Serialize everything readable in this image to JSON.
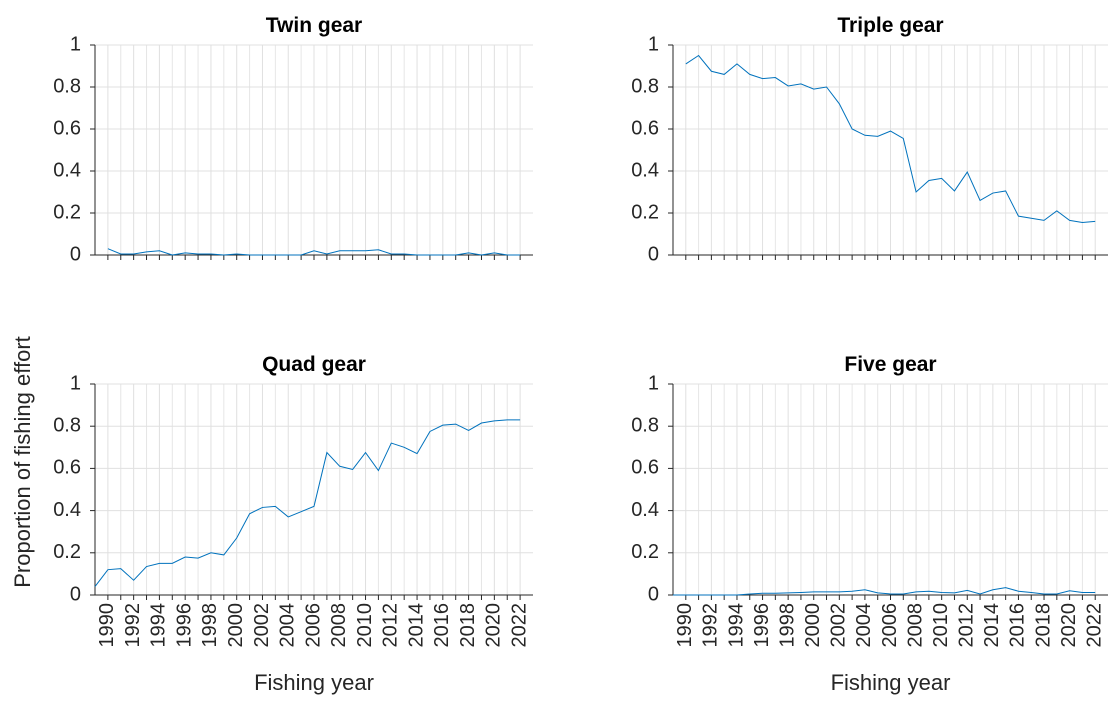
{
  "chart_data": [
    {
      "type": "line",
      "title": "Twin gear",
      "x": [
        1990,
        1991,
        1992,
        1993,
        1994,
        1995,
        1996,
        1997,
        1998,
        1999,
        2000,
        2001,
        2002,
        2003,
        2004,
        2005,
        2006,
        2007,
        2008,
        2009,
        2010,
        2011,
        2012,
        2013,
        2014,
        2015,
        2016,
        2017,
        2018,
        2019,
        2020,
        2021,
        2022
      ],
      "values": [
        0.03,
        0.005,
        0.005,
        0.015,
        0.02,
        0,
        0.01,
        0.005,
        0.005,
        0,
        0.005,
        0,
        0,
        0,
        0,
        0,
        0.02,
        0.005,
        0.02,
        0.02,
        0.02,
        0.025,
        0.005,
        0.005,
        0,
        0,
        0,
        0,
        0.01,
        0,
        0.01,
        0,
        0
      ],
      "color": "#0072bd",
      "xlim": [
        1989,
        2023
      ],
      "ylim": [
        0,
        1
      ],
      "yticks": [
        0,
        0.2,
        0.4,
        0.6,
        0.8,
        1
      ],
      "xticks": [
        1990,
        1992,
        1994,
        1996,
        1998,
        2000,
        2002,
        2004,
        2006,
        2008,
        2010,
        2012,
        2014,
        2016,
        2018,
        2020,
        2022
      ],
      "xminorticks": [
        1991,
        1993,
        1995,
        1997,
        1999,
        2001,
        2003,
        2005,
        2007,
        2009,
        2011,
        2013,
        2015,
        2017,
        2019,
        2021
      ],
      "xticklabels": false,
      "grid": true
    },
    {
      "type": "line",
      "title": "Triple gear",
      "x": [
        1990,
        1991,
        1992,
        1993,
        1994,
        1995,
        1996,
        1997,
        1998,
        1999,
        2000,
        2001,
        2002,
        2003,
        2004,
        2005,
        2006,
        2007,
        2008,
        2009,
        2010,
        2011,
        2012,
        2013,
        2014,
        2015,
        2016,
        2017,
        2018,
        2019,
        2020,
        2021,
        2022
      ],
      "values": [
        0.91,
        0.95,
        0.875,
        0.86,
        0.91,
        0.86,
        0.84,
        0.845,
        0.805,
        0.815,
        0.79,
        0.8,
        0.72,
        0.6,
        0.57,
        0.565,
        0.59,
        0.555,
        0.3,
        0.355,
        0.365,
        0.305,
        0.395,
        0.26,
        0.295,
        0.305,
        0.185,
        0.175,
        0.165,
        0.21,
        0.165,
        0.155,
        0.16
      ],
      "color": "#0072bd",
      "xlim": [
        1989,
        2023
      ],
      "ylim": [
        0,
        1
      ],
      "yticks": [
        0,
        0.2,
        0.4,
        0.6,
        0.8,
        1
      ],
      "xticks": [
        1990,
        1992,
        1994,
        1996,
        1998,
        2000,
        2002,
        2004,
        2006,
        2008,
        2010,
        2012,
        2014,
        2016,
        2018,
        2020,
        2022
      ],
      "xminorticks": [
        1991,
        1993,
        1995,
        1997,
        1999,
        2001,
        2003,
        2005,
        2007,
        2009,
        2011,
        2013,
        2015,
        2017,
        2019,
        2021
      ],
      "xticklabels": false,
      "grid": true
    },
    {
      "type": "line",
      "title": "Quad gear",
      "xlabel": "Fishing year",
      "ylabel": "Proportion of fishing effort",
      "x": [
        1989,
        1990,
        1991,
        1992,
        1993,
        1994,
        1995,
        1996,
        1997,
        1998,
        1999,
        2000,
        2001,
        2002,
        2003,
        2004,
        2005,
        2006,
        2007,
        2008,
        2009,
        2010,
        2011,
        2012,
        2013,
        2014,
        2015,
        2016,
        2017,
        2018,
        2019,
        2020,
        2021,
        2022
      ],
      "values": [
        0.04,
        0.12,
        0.125,
        0.07,
        0.135,
        0.15,
        0.15,
        0.18,
        0.175,
        0.2,
        0.19,
        0.27,
        0.385,
        0.415,
        0.42,
        0.37,
        0.395,
        0.42,
        0.675,
        0.61,
        0.595,
        0.675,
        0.59,
        0.72,
        0.7,
        0.67,
        0.775,
        0.805,
        0.81,
        0.78,
        0.815,
        0.825,
        0.83,
        0.83
      ],
      "color": "#0072bd",
      "xlim": [
        1989,
        2023
      ],
      "ylim": [
        0,
        1
      ],
      "yticks": [
        0,
        0.2,
        0.4,
        0.6,
        0.8,
        1
      ],
      "xticks": [
        1990,
        1992,
        1994,
        1996,
        1998,
        2000,
        2002,
        2004,
        2006,
        2008,
        2010,
        2012,
        2014,
        2016,
        2018,
        2020,
        2022
      ],
      "xminorticks": [
        1991,
        1993,
        1995,
        1997,
        1999,
        2001,
        2003,
        2005,
        2007,
        2009,
        2011,
        2013,
        2015,
        2017,
        2019,
        2021
      ],
      "xticklabels": true,
      "grid": true
    },
    {
      "type": "line",
      "title": "Five gear",
      "xlabel": "Fishing year",
      "x": [
        1989,
        1990,
        1991,
        1992,
        1993,
        1994,
        1995,
        1996,
        1997,
        1998,
        1999,
        2000,
        2001,
        2002,
        2003,
        2004,
        2005,
        2006,
        2007,
        2008,
        2009,
        2010,
        2011,
        2012,
        2013,
        2014,
        2015,
        2016,
        2017,
        2018,
        2019,
        2020,
        2021,
        2022
      ],
      "values": [
        0,
        0,
        0,
        0,
        0,
        0,
        0.005,
        0.008,
        0.008,
        0.01,
        0.012,
        0.015,
        0.015,
        0.015,
        0.018,
        0.025,
        0.01,
        0.005,
        0.005,
        0.015,
        0.018,
        0.012,
        0.01,
        0.022,
        0.005,
        0.025,
        0.035,
        0.018,
        0.012,
        0.005,
        0.005,
        0.02,
        0.012,
        0.012
      ],
      "color": "#0072bd",
      "xlim": [
        1989,
        2023
      ],
      "ylim": [
        0,
        1
      ],
      "yticks": [
        0,
        0.2,
        0.4,
        0.6,
        0.8,
        1
      ],
      "xticks": [
        1990,
        1992,
        1994,
        1996,
        1998,
        2000,
        2002,
        2004,
        2006,
        2008,
        2010,
        2012,
        2014,
        2016,
        2018,
        2020,
        2022
      ],
      "xminorticks": [
        1991,
        1993,
        1995,
        1997,
        1999,
        2001,
        2003,
        2005,
        2007,
        2009,
        2011,
        2013,
        2015,
        2017,
        2019,
        2021
      ],
      "xticklabels": true,
      "grid": true
    }
  ]
}
